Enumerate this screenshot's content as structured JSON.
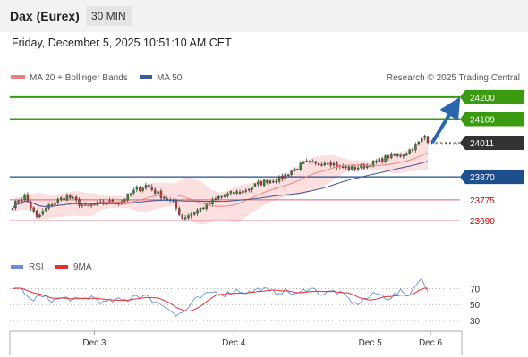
{
  "header": {
    "title": "Dax (Eurex)",
    "timeframe": "30 MIN",
    "datetime": "Friday, December 5, 2025 10:51:10 AM CET"
  },
  "legend": {
    "ma20": "MA 20 + Bollinger Bands",
    "ma50": "MA 50",
    "rsi": "RSI",
    "rsi_ma": "9MA",
    "copyright": "Research © 2025 Trading Central"
  },
  "colors": {
    "candle_up": "#2e8b2e",
    "candle_down": "#d03030",
    "ma20": "#f08080",
    "ma50": "#3a5a9a",
    "bollinger_fill": "#fbd7d7",
    "resistance": "#3a9a10",
    "pivot": "#1f4e8c",
    "support": "#e06070",
    "last": "#333333",
    "rsi": "#6a8fd8",
    "rsi_ma": "#e03030",
    "arrow": "#2a66b0"
  },
  "chart_data": {
    "type": "candlestick",
    "timeframe": "30 MIN",
    "x_ticks": [
      "Dec 3",
      "Dec 4",
      "Dec 5",
      "Dec 6"
    ],
    "ylim": [
      23560,
      24240
    ],
    "levels": [
      {
        "value": 24200,
        "label": "24200",
        "type": "resistance"
      },
      {
        "value": 24109,
        "label": "24109",
        "type": "resistance"
      },
      {
        "value": 24011,
        "label": "24011",
        "type": "last"
      },
      {
        "value": 23870,
        "label": "23870",
        "type": "pivot"
      },
      {
        "value": 23775,
        "label": "23775",
        "type": "support"
      },
      {
        "value": 23690,
        "label": "23690",
        "type": "support"
      }
    ],
    "price_anchors": [
      [
        0,
        23750
      ],
      [
        4,
        23790
      ],
      [
        8,
        23700
      ],
      [
        13,
        23760
      ],
      [
        18,
        23790
      ],
      [
        24,
        23745
      ],
      [
        30,
        23760
      ],
      [
        36,
        23770
      ],
      [
        40,
        23810
      ],
      [
        44,
        23835
      ],
      [
        48,
        23800
      ],
      [
        53,
        23760
      ],
      [
        56,
        23700
      ],
      [
        60,
        23725
      ],
      [
        64,
        23750
      ],
      [
        68,
        23785
      ],
      [
        72,
        23800
      ],
      [
        76,
        23810
      ],
      [
        80,
        23835
      ],
      [
        84,
        23855
      ],
      [
        88,
        23860
      ],
      [
        92,
        23895
      ],
      [
        96,
        23925
      ],
      [
        100,
        23920
      ],
      [
        104,
        23935
      ],
      [
        108,
        23910
      ],
      [
        112,
        23905
      ],
      [
        116,
        23915
      ],
      [
        120,
        23930
      ],
      [
        124,
        23955
      ],
      [
        128,
        23960
      ],
      [
        131,
        23980
      ],
      [
        134,
        24010
      ],
      [
        136,
        24040
      ],
      [
        137,
        24011
      ]
    ],
    "rsi": {
      "ticks": [
        30,
        50,
        70
      ],
      "ylim": [
        20,
        85
      ],
      "anchors": [
        [
          0,
          67
        ],
        [
          3,
          70
        ],
        [
          6,
          55
        ],
        [
          9,
          60
        ],
        [
          13,
          56
        ],
        [
          18,
          58
        ],
        [
          22,
          55
        ],
        [
          26,
          60
        ],
        [
          30,
          52
        ],
        [
          34,
          55
        ],
        [
          38,
          56
        ],
        [
          40,
          62
        ],
        [
          44,
          60
        ],
        [
          48,
          52
        ],
        [
          52,
          45
        ],
        [
          54,
          36
        ],
        [
          57,
          42
        ],
        [
          60,
          55
        ],
        [
          63,
          60
        ],
        [
          66,
          66
        ],
        [
          70,
          63
        ],
        [
          74,
          68
        ],
        [
          78,
          65
        ],
        [
          82,
          70
        ],
        [
          86,
          65
        ],
        [
          90,
          67
        ],
        [
          94,
          62
        ],
        [
          98,
          72
        ],
        [
          102,
          63
        ],
        [
          106,
          67
        ],
        [
          110,
          60
        ],
        [
          113,
          50
        ],
        [
          116,
          56
        ],
        [
          120,
          64
        ],
        [
          124,
          58
        ],
        [
          128,
          66
        ],
        [
          131,
          62
        ],
        [
          133,
          77
        ],
        [
          135,
          80
        ],
        [
          137,
          68
        ]
      ]
    },
    "projection": {
      "from": 24011,
      "to": 24200
    }
  }
}
